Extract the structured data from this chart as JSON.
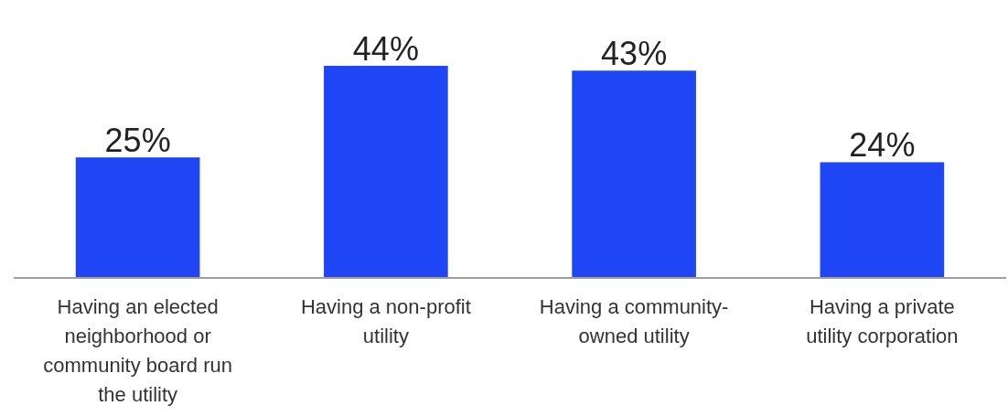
{
  "chart_data": {
    "type": "bar",
    "categories": [
      "Having an elected neighborhood or community board run the utility",
      "Having a non-profit utility",
      "Having a community-owned utility",
      "Having a private utility corporation"
    ],
    "values": [
      25,
      44,
      43,
      24
    ],
    "value_labels": [
      "25%",
      "44%",
      "43%",
      "24%"
    ],
    "color": "#1f46f5",
    "tick_labels": "x"
  }
}
